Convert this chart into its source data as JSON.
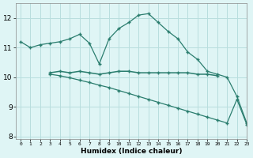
{
  "line1_x": [
    0,
    1,
    2,
    3,
    4,
    5,
    6,
    7,
    8,
    9,
    10,
    11,
    12,
    13,
    14,
    15,
    16,
    17,
    18,
    19,
    20,
    21,
    22,
    23
  ],
  "line1_y": [
    11.2,
    11.0,
    11.1,
    11.15,
    11.2,
    11.3,
    11.45,
    11.15,
    10.45,
    11.3,
    11.65,
    11.85,
    12.1,
    12.15,
    11.85,
    11.55,
    11.3,
    10.85,
    10.6,
    10.2,
    10.1,
    10.0,
    9.35,
    8.45
  ],
  "line2_x": [
    3,
    4,
    5,
    6,
    7,
    8,
    9,
    10,
    11,
    12,
    13,
    14,
    15,
    16,
    17,
    18,
    19,
    20
  ],
  "line2_y": [
    10.15,
    10.2,
    10.15,
    10.2,
    10.15,
    10.1,
    10.15,
    10.2,
    10.2,
    10.15,
    10.15,
    10.15,
    10.15,
    10.15,
    10.15,
    10.1,
    10.1,
    10.05
  ],
  "line3_x": [
    3,
    4,
    5,
    6,
    7,
    8,
    9,
    10,
    11,
    12,
    13,
    14,
    15,
    16,
    17,
    18,
    19,
    20,
    21,
    22,
    23
  ],
  "line3_y": [
    10.1,
    10.05,
    9.98,
    9.9,
    9.82,
    9.73,
    9.65,
    9.55,
    9.45,
    9.35,
    9.25,
    9.15,
    9.05,
    8.95,
    8.85,
    8.75,
    8.65,
    8.55,
    8.45,
    9.25,
    8.4
  ],
  "color": "#2a7d6e",
  "bg_color": "#dff5f5",
  "grid_color": "#b8dede",
  "xlabel": "Humidex (Indice chaleur)",
  "xlim": [
    -0.5,
    23
  ],
  "ylim": [
    7.9,
    12.5
  ],
  "yticks": [
    8,
    9,
    10,
    11,
    12
  ],
  "xticks": [
    0,
    1,
    2,
    3,
    4,
    5,
    6,
    7,
    8,
    9,
    10,
    11,
    12,
    13,
    14,
    15,
    16,
    17,
    18,
    19,
    20,
    21,
    22,
    23
  ]
}
